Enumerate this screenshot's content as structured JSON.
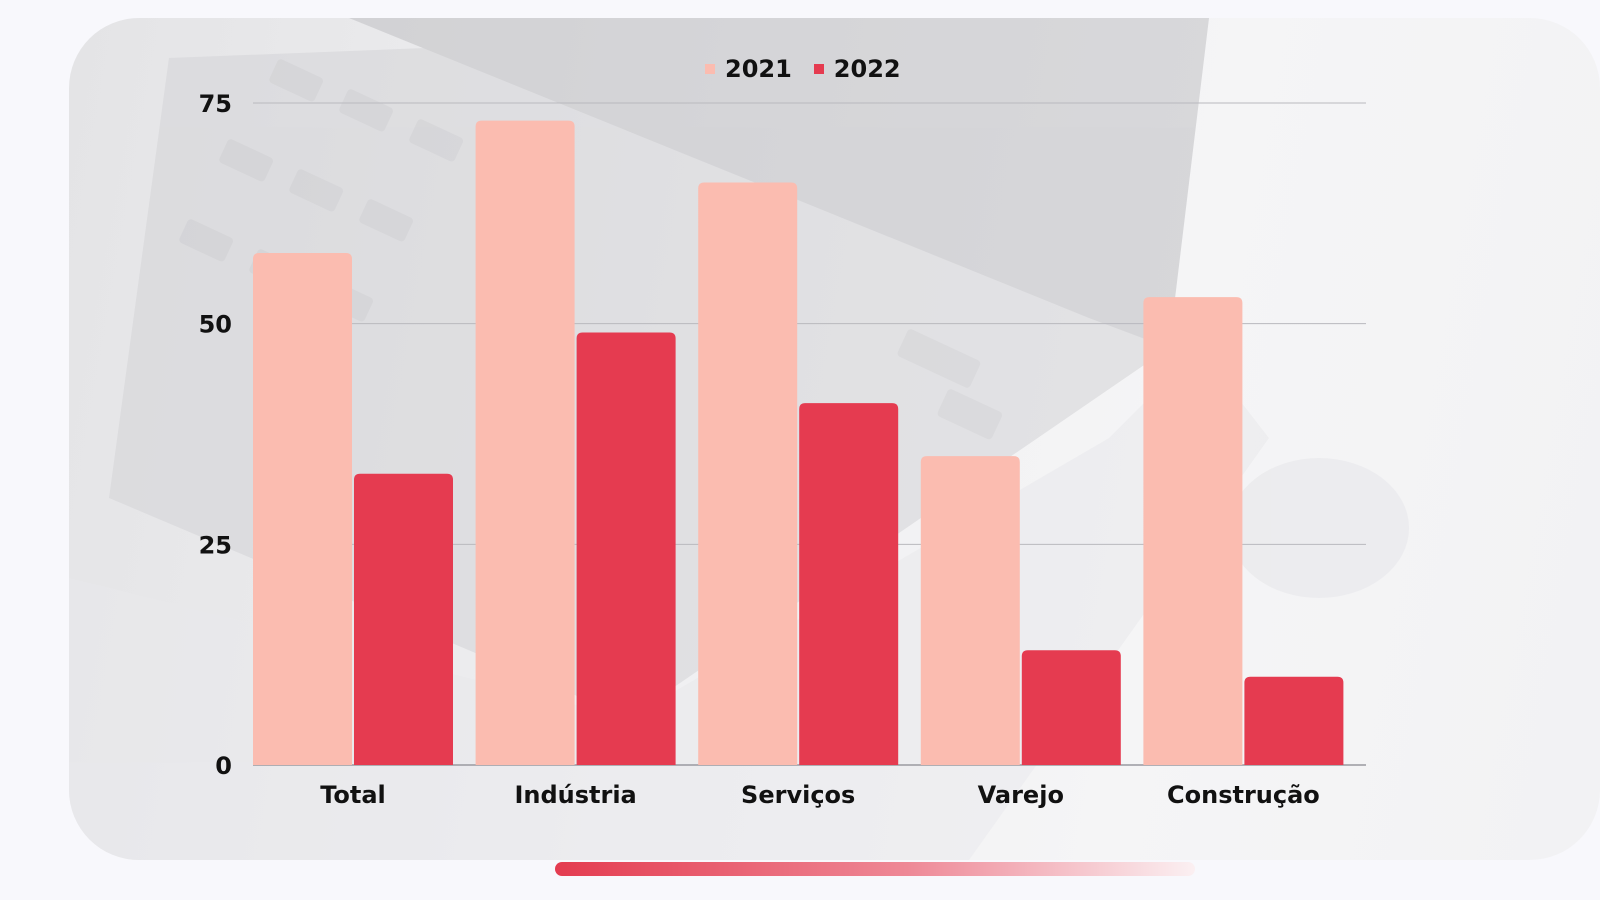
{
  "legend": [
    {
      "label": "2021",
      "color": "#fbbcb0"
    },
    {
      "label": "2022",
      "color": "#e53b50"
    }
  ],
  "chart_data": {
    "type": "bar",
    "categories": [
      "Total",
      "Indústria",
      "Serviços",
      "Varejo",
      "Construção"
    ],
    "series": [
      {
        "name": "2021",
        "values": [
          58,
          73,
          66,
          35,
          53
        ],
        "color": "#fbbcb0"
      },
      {
        "name": "2022",
        "values": [
          33,
          49,
          41,
          13,
          10
        ],
        "color": "#e53b50"
      }
    ],
    "yticks": [
      0,
      25,
      50,
      75
    ],
    "ylim": [
      0,
      75
    ],
    "grid": true,
    "legend_position": "top-center",
    "title": "",
    "xlabel": "",
    "ylabel": ""
  }
}
